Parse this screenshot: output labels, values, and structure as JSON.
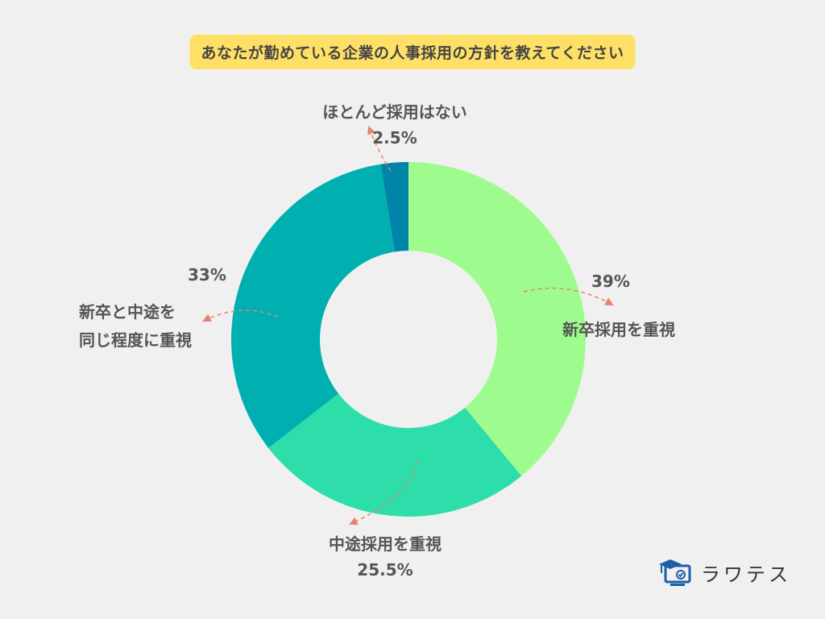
{
  "title": "あなたが勤めている企業の人事採用の方針を教えてください",
  "chart_data": {
    "type": "pie",
    "donut": true,
    "slices": [
      {
        "label": "新卒採用を重視",
        "value": 39,
        "value_label": "39%",
        "color": "#9efc8e"
      },
      {
        "label": "中途採用を重視",
        "value": 25.5,
        "value_label": "25.5%",
        "color": "#2ddeaa"
      },
      {
        "label": "新卒と中途を同じ程度に重視",
        "label_lines": [
          "新卒と中途を",
          "同じ程度に重視"
        ],
        "value": 33,
        "value_label": "33%",
        "color": "#00b0b0"
      },
      {
        "label": "ほとんど採用はない",
        "value": 2.5,
        "value_label": "2.5%",
        "color": "#0085a8"
      }
    ],
    "start_angle_deg": 0,
    "direction": "clockwise"
  },
  "annotation_color": "#e8826f",
  "logo": {
    "text": "ラワテス",
    "icon": "graduation-monitor-icon"
  }
}
